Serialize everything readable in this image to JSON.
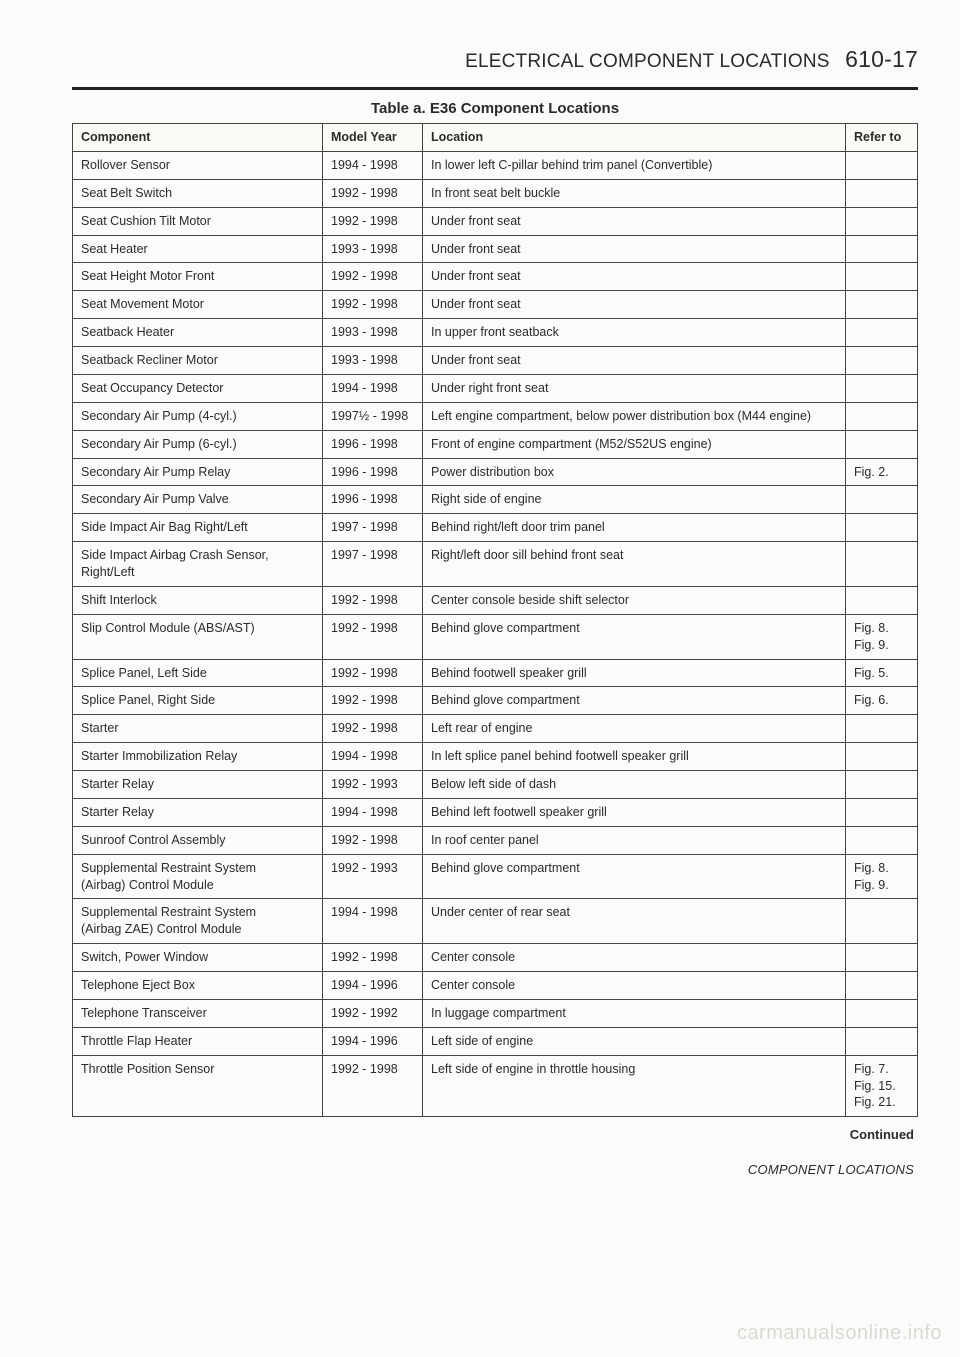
{
  "header": {
    "section_title": "ELECTRICAL COMPONENT LOCATIONS",
    "page_number": "610-17"
  },
  "table_title": "Table a. E36 Component Locations",
  "columns": {
    "component": "Component",
    "model_year": "Model Year",
    "location": "Location",
    "refer_to": "Refer to"
  },
  "rows": [
    {
      "component": "Rollover Sensor",
      "model_year": "1994 - 1998",
      "location": "In lower left C-pillar behind trim panel (Convertible)",
      "refer_to": ""
    },
    {
      "component": "Seat Belt Switch",
      "model_year": "1992 - 1998",
      "location": "In front seat belt buckle",
      "refer_to": ""
    },
    {
      "component": "Seat Cushion Tilt Motor",
      "model_year": "1992 - 1998",
      "location": "Under front seat",
      "refer_to": ""
    },
    {
      "component": "Seat Heater",
      "model_year": "1993 - 1998",
      "location": "Under front seat",
      "refer_to": ""
    },
    {
      "component": "Seat Height Motor Front",
      "model_year": "1992 - 1998",
      "location": "Under front seat",
      "refer_to": ""
    },
    {
      "component": "Seat Movement Motor",
      "model_year": "1992 - 1998",
      "location": "Under front seat",
      "refer_to": ""
    },
    {
      "component": "Seatback Heater",
      "model_year": "1993 - 1998",
      "location": "In upper front seatback",
      "refer_to": ""
    },
    {
      "component": "Seatback Recliner Motor",
      "model_year": "1993 - 1998",
      "location": "Under front seat",
      "refer_to": ""
    },
    {
      "component": "Seat Occupancy Detector",
      "model_year": "1994 - 1998",
      "location": "Under right front seat",
      "refer_to": ""
    },
    {
      "component": "Secondary Air Pump (4-cyl.)",
      "model_year": "1997½ - 1998",
      "location": "Left engine compartment, below power distribution box (M44 engine)",
      "refer_to": ""
    },
    {
      "component": "Secondary Air Pump (6-cyl.)",
      "model_year": "1996 - 1998",
      "location": "Front of engine compartment (M52/S52US engine)",
      "refer_to": ""
    },
    {
      "component": "Secondary Air Pump Relay",
      "model_year": "1996 - 1998",
      "location": "Power distribution box",
      "refer_to": "Fig. 2."
    },
    {
      "component": "Secondary Air Pump Valve",
      "model_year": "1996 - 1998",
      "location": "Right side of engine",
      "refer_to": ""
    },
    {
      "component": "Side Impact Air Bag Right/Left",
      "model_year": "1997 - 1998",
      "location": "Behind right/left door trim panel",
      "refer_to": ""
    },
    {
      "component": "Side Impact Airbag Crash Sensor,\n  Right/Left",
      "model_year": "1997 - 1998",
      "location": "Right/left door sill behind front seat",
      "refer_to": ""
    },
    {
      "component": "Shift Interlock",
      "model_year": "1992 - 1998",
      "location": "Center console beside shift selector",
      "refer_to": ""
    },
    {
      "component": "Slip Control Module (ABS/AST)",
      "model_year": "1992 - 1998",
      "location": "Behind glove compartment",
      "refer_to": "Fig. 8.\nFig. 9."
    },
    {
      "component": "Splice Panel, Left Side",
      "model_year": "1992 - 1998",
      "location": "Behind footwell speaker grill",
      "refer_to": "Fig. 5."
    },
    {
      "component": "Splice Panel, Right Side",
      "model_year": "1992 - 1998",
      "location": "Behind glove compartment",
      "refer_to": "Fig. 6."
    },
    {
      "component": "Starter",
      "model_year": "1992 - 1998",
      "location": "Left rear of engine",
      "refer_to": ""
    },
    {
      "component": "Starter Immobilization Relay",
      "model_year": "1994 - 1998",
      "location": "In left splice panel behind footwell speaker grill",
      "refer_to": ""
    },
    {
      "component": "Starter Relay",
      "model_year": "1992 - 1993",
      "location": "Below left side of dash",
      "refer_to": ""
    },
    {
      "component": "Starter Relay",
      "model_year": "1994 - 1998",
      "location": "Behind left footwell speaker grill",
      "refer_to": ""
    },
    {
      "component": "Sunroof Control Assembly",
      "model_year": "1992 - 1998",
      "location": "In roof center panel",
      "refer_to": ""
    },
    {
      "component": "Supplemental Restraint System\n  (Airbag) Control Module",
      "model_year": "1992 - 1993",
      "location": "Behind glove compartment",
      "refer_to": "Fig. 8.\nFig. 9."
    },
    {
      "component": "Supplemental Restraint System\n  (Airbag ZAE) Control Module",
      "model_year": "1994 - 1998",
      "location": "Under center of rear seat",
      "refer_to": ""
    },
    {
      "component": "Switch, Power Window",
      "model_year": "1992 - 1998",
      "location": "Center console",
      "refer_to": ""
    },
    {
      "component": "Telephone Eject Box",
      "model_year": "1994 - 1996",
      "location": "Center console",
      "refer_to": ""
    },
    {
      "component": "Telephone Transceiver",
      "model_year": "1992 - 1992",
      "location": "In luggage compartment",
      "refer_to": ""
    },
    {
      "component": "Throttle Flap Heater",
      "model_year": "1994 - 1996",
      "location": "Left side of engine",
      "refer_to": ""
    },
    {
      "component": "Throttle Position Sensor",
      "model_year": "1992 - 1998",
      "location": "Left side of engine in throttle housing",
      "refer_to": "Fig. 7.\nFig. 15.\nFig. 21."
    }
  ],
  "continued_label": "Continued",
  "footer_label": "COMPONENT LOCATIONS",
  "watermark": "carmanualsonline.info"
}
